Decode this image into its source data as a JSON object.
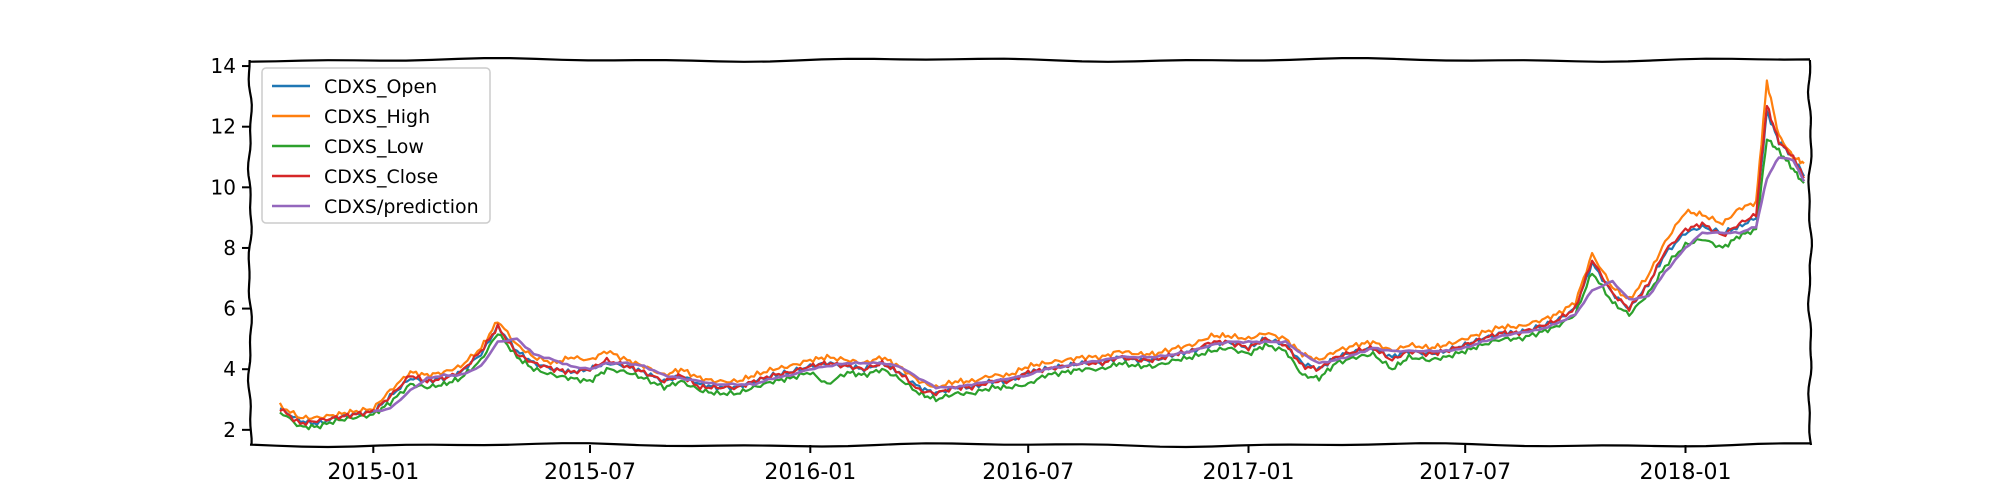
{
  "chart_data": {
    "type": "line",
    "title": "",
    "xlabel": "",
    "ylabel": "",
    "x_range": [
      "2014-09-20",
      "2018-04-15"
    ],
    "ylim": [
      1.5,
      14.2
    ],
    "x_ticks": [
      {
        "date": "2015-01-01",
        "label": "2015-01"
      },
      {
        "date": "2015-07-01",
        "label": "2015-07"
      },
      {
        "date": "2016-01-01",
        "label": "2016-01"
      },
      {
        "date": "2016-07-01",
        "label": "2016-07"
      },
      {
        "date": "2017-01-01",
        "label": "2017-01"
      },
      {
        "date": "2017-07-01",
        "label": "2017-07"
      },
      {
        "date": "2018-01-01",
        "label": "2018-01"
      }
    ],
    "y_ticks": [
      2,
      4,
      6,
      8,
      10,
      12,
      14
    ],
    "grid": false,
    "legend_position": "top-left",
    "legend": [
      "CDXS_Open",
      "CDXS_High",
      "CDXS_Low",
      "CDXS_Close",
      "CDXS/prediction"
    ],
    "colors": {
      "CDXS_Open": "#1f77b4",
      "CDXS_High": "#ff7f0e",
      "CDXS_Low": "#2ca02c",
      "CDXS_Close": "#d62728",
      "CDXS/prediction": "#9467bd"
    },
    "x": [
      "2014-10-15",
      "2014-11-01",
      "2014-11-15",
      "2014-12-01",
      "2014-12-15",
      "2015-01-01",
      "2015-01-15",
      "2015-02-01",
      "2015-02-15",
      "2015-03-01",
      "2015-03-15",
      "2015-04-01",
      "2015-04-15",
      "2015-05-01",
      "2015-05-15",
      "2015-06-01",
      "2015-06-15",
      "2015-07-01",
      "2015-07-15",
      "2015-08-01",
      "2015-08-15",
      "2015-09-01",
      "2015-09-15",
      "2015-10-01",
      "2015-10-15",
      "2015-11-01",
      "2015-11-15",
      "2015-12-01",
      "2015-12-15",
      "2016-01-01",
      "2016-01-15",
      "2016-02-01",
      "2016-02-15",
      "2016-03-01",
      "2016-03-15",
      "2016-04-01",
      "2016-04-15",
      "2016-05-01",
      "2016-05-15",
      "2016-06-01",
      "2016-06-15",
      "2016-07-01",
      "2016-07-15",
      "2016-08-01",
      "2016-08-15",
      "2016-09-01",
      "2016-09-15",
      "2016-10-01",
      "2016-10-15",
      "2016-11-01",
      "2016-11-15",
      "2016-12-01",
      "2016-12-15",
      "2017-01-01",
      "2017-01-15",
      "2017-02-01",
      "2017-02-15",
      "2017-03-01",
      "2017-03-15",
      "2017-04-01",
      "2017-04-15",
      "2017-05-01",
      "2017-05-15",
      "2017-06-01",
      "2017-06-15",
      "2017-07-01",
      "2017-07-15",
      "2017-08-01",
      "2017-08-15",
      "2017-09-01",
      "2017-09-15",
      "2017-10-01",
      "2017-10-15",
      "2017-11-01",
      "2017-11-15",
      "2017-12-01",
      "2017-12-15",
      "2018-01-01",
      "2018-01-15",
      "2018-02-01",
      "2018-02-15",
      "2018-03-01",
      "2018-03-10",
      "2018-03-20",
      "2018-04-01",
      "2018-04-10"
    ],
    "series": [
      {
        "name": "CDXS_Open",
        "values": [
          2.7,
          2.3,
          2.2,
          2.4,
          2.5,
          2.6,
          3.1,
          3.7,
          3.6,
          3.7,
          3.9,
          4.5,
          5.4,
          4.6,
          4.2,
          4.0,
          3.9,
          4.0,
          4.2,
          4.1,
          3.9,
          3.6,
          3.8,
          3.5,
          3.4,
          3.4,
          3.6,
          3.8,
          3.9,
          4.1,
          4.2,
          4.1,
          4.0,
          4.2,
          3.9,
          3.4,
          3.2,
          3.4,
          3.4,
          3.6,
          3.6,
          3.9,
          4.0,
          4.1,
          4.2,
          4.2,
          4.4,
          4.3,
          4.3,
          4.5,
          4.6,
          4.8,
          4.9,
          4.7,
          5.0,
          4.8,
          4.2,
          4.0,
          4.4,
          4.6,
          4.7,
          4.4,
          4.6,
          4.5,
          4.6,
          4.8,
          5.0,
          5.2,
          5.2,
          5.4,
          5.6,
          6.0,
          7.5,
          6.5,
          6.0,
          6.8,
          7.8,
          8.5,
          8.7,
          8.5,
          8.7,
          9.0,
          12.5,
          11.5,
          11.0,
          10.4
        ]
      },
      {
        "name": "CDXS_High",
        "values": [
          2.8,
          2.4,
          2.4,
          2.5,
          2.6,
          2.7,
          3.3,
          3.9,
          3.8,
          3.9,
          4.1,
          4.7,
          5.6,
          4.8,
          4.4,
          4.2,
          4.4,
          4.3,
          4.6,
          4.3,
          4.1,
          3.8,
          4.0,
          3.7,
          3.6,
          3.6,
          3.8,
          4.0,
          4.1,
          4.3,
          4.4,
          4.3,
          4.2,
          4.4,
          4.1,
          3.6,
          3.4,
          3.6,
          3.6,
          3.8,
          3.8,
          4.1,
          4.2,
          4.3,
          4.4,
          4.4,
          4.6,
          4.5,
          4.5,
          4.7,
          4.8,
          5.1,
          5.1,
          5.0,
          5.2,
          5.0,
          4.5,
          4.3,
          4.6,
          4.8,
          4.9,
          4.6,
          4.8,
          4.7,
          4.8,
          5.0,
          5.2,
          5.4,
          5.4,
          5.6,
          5.8,
          6.2,
          7.8,
          6.7,
          6.3,
          7.1,
          8.2,
          9.2,
          9.1,
          8.8,
          9.3,
          9.5,
          13.5,
          11.7,
          11.0,
          10.8
        ]
      },
      {
        "name": "CDXS_Low",
        "values": [
          2.6,
          2.1,
          2.1,
          2.3,
          2.4,
          2.5,
          2.9,
          3.5,
          3.4,
          3.5,
          3.7,
          4.3,
          5.2,
          4.4,
          4.0,
          3.8,
          3.7,
          3.6,
          4.0,
          3.9,
          3.7,
          3.4,
          3.6,
          3.3,
          3.2,
          3.2,
          3.4,
          3.6,
          3.7,
          3.9,
          3.5,
          3.9,
          3.8,
          4.0,
          3.7,
          3.2,
          3.0,
          3.2,
          3.2,
          3.4,
          3.4,
          3.5,
          3.8,
          3.9,
          4.0,
          4.0,
          4.2,
          4.1,
          4.1,
          4.3,
          4.4,
          4.6,
          4.7,
          4.5,
          4.8,
          4.6,
          3.8,
          3.7,
          4.2,
          4.4,
          4.5,
          4.0,
          4.4,
          4.3,
          4.4,
          4.6,
          4.8,
          5.0,
          5.0,
          5.2,
          5.4,
          5.8,
          7.2,
          6.2,
          5.8,
          6.5,
          7.4,
          8.1,
          8.3,
          8.0,
          8.4,
          8.6,
          11.6,
          11.2,
          10.6,
          10.1
        ]
      },
      {
        "name": "CDXS_Close",
        "values": [
          2.7,
          2.2,
          2.3,
          2.4,
          2.5,
          2.6,
          3.1,
          3.8,
          3.6,
          3.7,
          3.9,
          4.6,
          5.4,
          4.5,
          4.2,
          4.0,
          3.9,
          4.0,
          4.3,
          4.1,
          3.9,
          3.6,
          3.8,
          3.4,
          3.4,
          3.4,
          3.6,
          3.8,
          3.9,
          4.1,
          4.2,
          4.1,
          4.0,
          4.2,
          3.9,
          3.3,
          3.2,
          3.4,
          3.4,
          3.6,
          3.6,
          3.9,
          4.0,
          4.1,
          4.2,
          4.2,
          4.4,
          4.3,
          4.3,
          4.5,
          4.6,
          4.9,
          4.9,
          4.7,
          5.0,
          4.8,
          4.1,
          4.0,
          4.4,
          4.6,
          4.7,
          4.3,
          4.6,
          4.5,
          4.6,
          4.8,
          5.0,
          5.2,
          5.2,
          5.4,
          5.6,
          6.0,
          7.6,
          6.5,
          6.0,
          6.8,
          7.9,
          8.6,
          8.8,
          8.4,
          8.8,
          9.1,
          12.7,
          11.5,
          11.0,
          10.3
        ]
      },
      {
        "name": "CDXS/prediction",
        "values": [
          null,
          null,
          null,
          null,
          null,
          2.6,
          2.7,
          3.3,
          3.7,
          3.8,
          3.8,
          4.1,
          4.9,
          5.0,
          4.5,
          4.3,
          4.1,
          4.0,
          4.2,
          4.2,
          4.1,
          3.8,
          3.7,
          3.6,
          3.5,
          3.5,
          3.5,
          3.7,
          3.8,
          4.0,
          4.1,
          4.2,
          4.2,
          4.2,
          4.1,
          3.7,
          3.4,
          3.4,
          3.5,
          3.6,
          3.7,
          3.8,
          4.0,
          4.1,
          4.2,
          4.3,
          4.4,
          4.4,
          4.4,
          4.5,
          4.6,
          4.8,
          4.9,
          4.9,
          4.9,
          4.9,
          4.5,
          4.2,
          4.3,
          4.5,
          4.7,
          4.6,
          4.6,
          4.6,
          4.6,
          4.7,
          4.9,
          5.1,
          5.2,
          5.3,
          5.5,
          5.8,
          6.6,
          6.9,
          6.3,
          6.4,
          7.2,
          8.0,
          8.5,
          8.5,
          8.5,
          8.7,
          10.3,
          11.0,
          10.9,
          10.2
        ]
      }
    ]
  }
}
